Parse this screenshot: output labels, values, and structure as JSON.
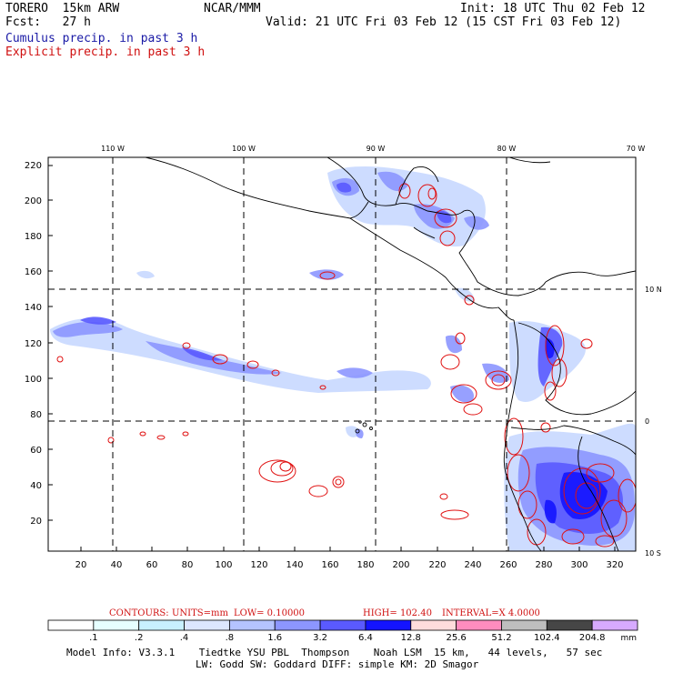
{
  "header": {
    "model": "TORERO  15km ARW",
    "org": "NCAR/MMM",
    "init": "Init: 18 UTC Thu 02 Feb 12",
    "fcst": "Fcst:   27 h",
    "valid": "Valid: 21 UTC Fri 03 Feb 12 (15 CST Fri 03 Feb 12)",
    "field1": "Cumulus precip. in past 3 h",
    "field2": "Explicit precip. in past 3 h"
  },
  "map": {
    "lon_labels": [
      "110 W",
      "100 W",
      "90 W",
      "80 W",
      "70 W"
    ],
    "lat_labels": [
      "10 N",
      "0",
      "10 S"
    ],
    "y_ticks": [
      "220",
      "200",
      "180",
      "160",
      "140",
      "120",
      "100",
      "80",
      "60",
      "40",
      "20"
    ],
    "x_ticks": [
      "20",
      "40",
      "60",
      "80",
      "100",
      "120",
      "140",
      "160",
      "180",
      "200",
      "220",
      "240",
      "260",
      "280",
      "300",
      "320"
    ]
  },
  "contour_info": {
    "label": "CONTOURS:",
    "units": "UNITS=mm",
    "low": "LOW= 0.10000",
    "high": "HIGH=  102.40",
    "interval": "INTERVAL=X  4.0000"
  },
  "colorbar": {
    "labels": [
      ".1",
      ".2",
      ".4",
      ".8",
      "1.6",
      "3.2",
      "6.4",
      "12.8",
      "25.6",
      "51.2",
      "102.4",
      "204.8"
    ],
    "unit": "mm",
    "colors": [
      "#ffffff",
      "#e6ffff",
      "#c8f0ff",
      "#dce6ff",
      "#b4c3ff",
      "#8c96ff",
      "#5a5aff",
      "#1414ff",
      "#ffdcdc",
      "#ff8cbe",
      "#bebebe",
      "#464646",
      "#d7aaff"
    ]
  },
  "footer": {
    "line1": "Model Info: V3.3.1    Tiedtke YSU PBL  Thompson    Noah LSM  15 km,   44 levels,   57 sec",
    "line2": "LW: Godd SW: Goddard DIFF: simple KM: 2D Smagor"
  }
}
